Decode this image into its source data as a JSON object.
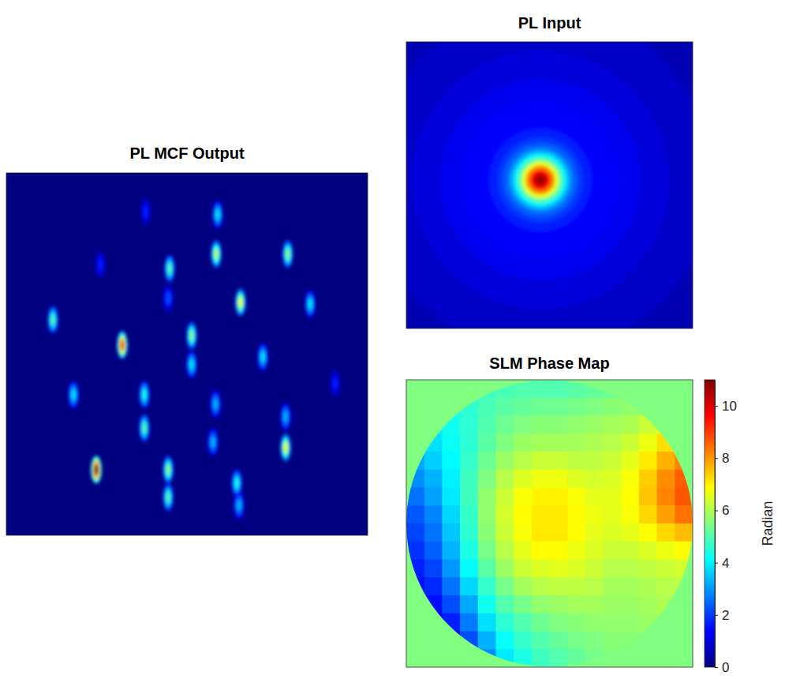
{
  "chart_data": [
    {
      "type": "scatter",
      "title": "PL MCF Output",
      "tick_labels": false,
      "xlim": [
        0,
        100
      ],
      "ylim": [
        0,
        100
      ],
      "clim": [
        0,
        1
      ],
      "x": [
        38.6,
        58.5,
        58.1,
        77.9,
        26.0,
        45.2,
        64.8,
        84.1,
        44.8,
        12.9,
        32.1,
        51.3,
        51.3,
        71.0,
        91.0,
        18.6,
        38.2,
        38.2,
        57.9,
        77.3,
        77.3,
        57.2,
        24.9,
        44.8,
        44.8,
        63.8,
        64.4
      ],
      "y": [
        10.7,
        11.5,
        22.4,
        22.4,
        25.3,
        26.4,
        35.7,
        36.2,
        34.6,
        40.5,
        47.5,
        44.9,
        52.9,
        50.8,
        58.0,
        61.2,
        61.2,
        70.4,
        63.8,
        67.3,
        75.8,
        74.3,
        81.9,
        81.9,
        89.5,
        85.6,
        91.7
      ],
      "intensity": [
        0.15,
        0.35,
        0.55,
        0.5,
        0.15,
        0.45,
        0.6,
        0.35,
        0.2,
        0.45,
        0.8,
        0.5,
        0.35,
        0.35,
        0.15,
        0.35,
        0.4,
        0.45,
        0.3,
        0.3,
        0.6,
        0.3,
        1.0,
        0.5,
        0.45,
        0.4,
        0.3
      ]
    },
    {
      "type": "radial",
      "title": "PL Input",
      "tick_labels": false,
      "xlim": [
        0,
        100
      ],
      "ylim": [
        0,
        100
      ],
      "clim": [
        0,
        1
      ],
      "center": [
        46.8,
        48.2
      ],
      "radius": [
        75,
        60,
        45,
        35,
        28,
        22,
        18,
        15,
        13,
        11,
        9.5,
        8,
        6.5,
        5,
        3.5,
        2
      ],
      "intensity": [
        0.05,
        0.07,
        0.09,
        0.11,
        0.12,
        0.13,
        0.15,
        0.18,
        0.22,
        0.28,
        0.36,
        0.46,
        0.6,
        0.75,
        0.88,
        0.97
      ]
    },
    {
      "type": "heatmap",
      "title": "SLM Phase Map",
      "tick_labels": false,
      "clim": [
        0,
        11
      ],
      "background": 5.5,
      "colorbar_ticks": [
        0,
        2,
        4,
        6,
        8,
        10
      ],
      "colorbar_label": "Radian",
      "cells": [
        [
          4.2,
          4.3,
          4.4,
          4.6,
          4.8,
          4.9,
          5.0,
          5.0,
          5.0,
          5.1,
          5.2,
          5.3,
          5.4,
          5.5,
          5.6,
          5.7
        ],
        [
          4.0,
          4.2,
          4.4,
          4.6,
          4.9,
          5.1,
          5.2,
          5.3,
          5.3,
          5.4,
          5.5,
          5.6,
          5.7,
          5.9,
          6.1,
          6.3
        ],
        [
          3.8,
          4.0,
          4.3,
          4.6,
          5.0,
          5.3,
          5.5,
          5.6,
          5.6,
          5.7,
          5.8,
          5.9,
          6.0,
          6.3,
          6.6,
          7.0
        ],
        [
          3.5,
          3.8,
          4.2,
          4.6,
          5.1,
          5.5,
          5.8,
          5.9,
          5.9,
          5.9,
          6.0,
          6.1,
          6.3,
          6.7,
          7.2,
          7.6
        ],
        [
          3.2,
          3.6,
          4.1,
          4.7,
          5.3,
          5.8,
          6.1,
          6.3,
          6.3,
          6.2,
          6.2,
          6.3,
          6.6,
          7.1,
          7.7,
          8.2
        ],
        [
          2.9,
          3.3,
          4.0,
          4.8,
          5.5,
          6.1,
          6.5,
          6.7,
          6.7,
          6.5,
          6.4,
          6.5,
          6.8,
          7.4,
          8.1,
          8.6
        ],
        [
          2.6,
          3.1,
          3.9,
          4.8,
          5.7,
          6.3,
          6.8,
          7.0,
          7.0,
          6.8,
          6.6,
          6.6,
          6.9,
          7.5,
          8.2,
          8.7
        ],
        [
          2.3,
          2.8,
          3.7,
          4.7,
          5.7,
          6.4,
          6.9,
          7.1,
          7.1,
          6.9,
          6.7,
          6.6,
          6.8,
          7.3,
          7.9,
          8.4
        ],
        [
          2.1,
          2.6,
          3.5,
          4.6,
          5.6,
          6.3,
          6.8,
          7.1,
          7.1,
          6.9,
          6.6,
          6.5,
          6.6,
          6.9,
          7.3,
          7.6
        ],
        [
          1.9,
          2.4,
          3.3,
          4.4,
          5.4,
          6.1,
          6.6,
          6.9,
          6.9,
          6.7,
          6.5,
          6.3,
          6.3,
          6.5,
          6.7,
          6.9
        ],
        [
          1.7,
          2.1,
          3.0,
          4.1,
          5.1,
          5.8,
          6.3,
          6.5,
          6.6,
          6.5,
          6.3,
          6.1,
          6.1,
          6.2,
          6.3,
          6.4
        ],
        [
          1.5,
          1.8,
          2.6,
          3.7,
          4.7,
          5.4,
          5.9,
          6.1,
          6.2,
          6.2,
          6.1,
          5.9,
          5.9,
          6.0,
          6.1,
          6.2
        ],
        [
          1.3,
          1.5,
          2.2,
          3.2,
          4.3,
          5.0,
          5.4,
          5.7,
          5.8,
          5.9,
          5.9,
          5.8,
          5.8,
          5.9,
          6.0,
          6.1
        ],
        [
          1.1,
          1.2,
          1.7,
          2.7,
          3.8,
          4.6,
          5.0,
          5.3,
          5.5,
          5.6,
          5.7,
          5.7,
          5.7,
          5.8,
          5.9,
          6.0
        ],
        [
          0.9,
          0.9,
          1.3,
          2.2,
          3.3,
          4.2,
          4.7,
          5.0,
          5.2,
          5.4,
          5.5,
          5.6,
          5.6,
          5.7,
          5.8,
          5.9
        ],
        [
          0.7,
          0.7,
          1.0,
          1.8,
          2.9,
          3.9,
          4.4,
          4.8,
          5.0,
          5.2,
          5.4,
          5.5,
          5.5,
          5.6,
          5.7,
          5.8
        ]
      ]
    }
  ]
}
